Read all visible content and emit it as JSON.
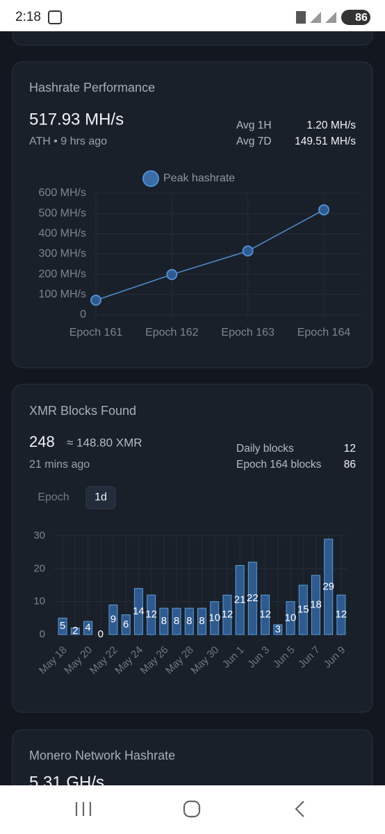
{
  "status_bar": {
    "time": "2:18",
    "battery": "86"
  },
  "hashrate_card": {
    "title": "Hashrate Performance",
    "value": "517.93 MH/s",
    "subtitle": "ATH • 9 hrs ago",
    "stats": [
      {
        "label": "Avg 1H",
        "value": "1.20 MH/s"
      },
      {
        "label": "Avg 7D",
        "value": "149.51 MH/s"
      }
    ]
  },
  "blocks_card": {
    "title": "XMR Blocks Found",
    "value": "248",
    "approx": "≈ 148.80 XMR",
    "subtitle": "21 mins ago",
    "stats": [
      {
        "label": "Daily blocks",
        "value": "12"
      },
      {
        "label": "Epoch 164 blocks",
        "value": "86"
      }
    ],
    "tabs": [
      "Epoch",
      "1d"
    ]
  },
  "network_card": {
    "title": "Monero Network Hashrate",
    "value": "5.31 GH/s"
  },
  "chart_data": [
    {
      "type": "line",
      "categories": [
        "Epoch 161",
        "Epoch 162",
        "Epoch 163",
        "Epoch 164"
      ],
      "series": [
        {
          "name": "Peak hashrate",
          "color": "#4f8fd6",
          "values": [
            72,
            199,
            315,
            517.93
          ]
        }
      ],
      "ylim": [
        0,
        600
      ],
      "yticks": [
        0,
        {
          "value": 100,
          "label": "100 MH/s"
        },
        {
          "value": 200,
          "label": "200 MH/s"
        },
        {
          "value": 300,
          "label": "300 MH/s"
        },
        {
          "value": 400,
          "label": "400 MH/s"
        },
        {
          "value": 500,
          "label": "500 MH/s"
        },
        {
          "value": 600,
          "label": "600 MH/s"
        }
      ],
      "grid": true
    },
    {
      "type": "bar",
      "categories": [
        "May 18",
        null,
        "May 20",
        null,
        "May 22",
        null,
        "May 24",
        null,
        "May 26",
        null,
        "May 28",
        null,
        "May 30",
        null,
        "Jun 1",
        null,
        "Jun 3",
        null,
        "Jun 5",
        null,
        "Jun 7",
        null,
        "Jun 9"
      ],
      "values": [
        5,
        2,
        4,
        0,
        9,
        6,
        14,
        12,
        8,
        8,
        8,
        8,
        10,
        12,
        21,
        22,
        12,
        3,
        10,
        15,
        18,
        29,
        12
      ],
      "color": "#2e5a8e",
      "ylim": [
        0,
        30
      ],
      "yticks": [
        0,
        10,
        20,
        30
      ],
      "grid": true,
      "data_labels": true
    }
  ]
}
